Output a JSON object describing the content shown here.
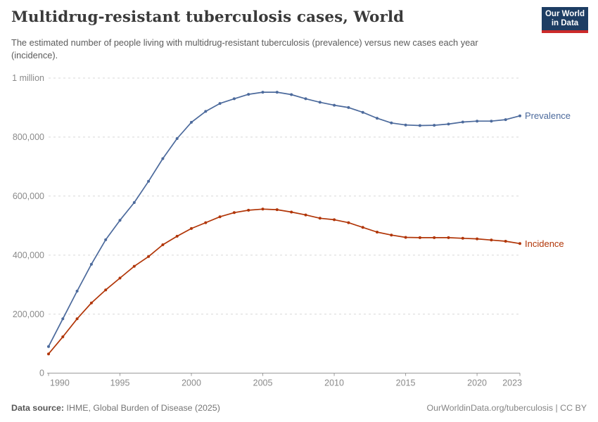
{
  "header": {
    "title": "Multidrug-resistant tuberculosis cases, World",
    "subtitle": "The estimated number of people living with multidrug-resistant tuberculosis (prevalence) versus new cases each year (incidence).",
    "logo": {
      "line1": "Our World",
      "line2": "in Data",
      "bg_color": "#1d3d63",
      "accent_color": "#cc2a2a"
    }
  },
  "chart_data": {
    "type": "line",
    "title": "Multidrug-resistant tuberculosis cases, World",
    "xlabel": "",
    "ylabel": "",
    "x": [
      1990,
      1991,
      1992,
      1993,
      1994,
      1995,
      1996,
      1997,
      1998,
      1999,
      2000,
      2001,
      2002,
      2003,
      2004,
      2005,
      2006,
      2007,
      2008,
      2009,
      2010,
      2011,
      2012,
      2013,
      2014,
      2015,
      2016,
      2017,
      2018,
      2019,
      2020,
      2021,
      2022,
      2023
    ],
    "series": [
      {
        "name": "Prevalence",
        "color": "#4C6A9C",
        "values": [
          90000,
          184000,
          278000,
          369000,
          452000,
          518000,
          578000,
          650000,
          727000,
          795000,
          850000,
          887000,
          914000,
          930000,
          945000,
          952000,
          952000,
          944000,
          930000,
          918000,
          908000,
          900000,
          884000,
          864000,
          848000,
          841000,
          839000,
          840000,
          844000,
          851000,
          854000,
          854000,
          859000,
          872000
        ]
      },
      {
        "name": "Incidence",
        "color": "#B13507",
        "values": [
          65000,
          123000,
          184000,
          238000,
          282000,
          322000,
          362000,
          395000,
          435000,
          464000,
          490000,
          510000,
          530000,
          544000,
          552000,
          556000,
          554000,
          546000,
          536000,
          525000,
          520000,
          510000,
          494000,
          478000,
          468000,
          460000,
          459000,
          459000,
          459000,
          457000,
          455000,
          451000,
          447000,
          439000
        ]
      }
    ],
    "ylim": [
      0,
      1000000
    ],
    "yticks": [
      {
        "value": 0,
        "label": "0"
      },
      {
        "value": 200000,
        "label": "200,000"
      },
      {
        "value": 400000,
        "label": "400,000"
      },
      {
        "value": 600000,
        "label": "600,000"
      },
      {
        "value": 800000,
        "label": "800,000"
      },
      {
        "value": 1000000,
        "label": "1 million"
      }
    ],
    "xticks": [
      1990,
      1995,
      2000,
      2005,
      2010,
      2015,
      2020,
      2023
    ],
    "grid": "horizontal-dashed",
    "legend_position": "end-of-line"
  },
  "footer": {
    "source_label": "Data source:",
    "source_value": " IHME, Global Burden of Disease (2025)",
    "attribution": "OurWorldinData.org/tuberculosis | CC BY"
  }
}
